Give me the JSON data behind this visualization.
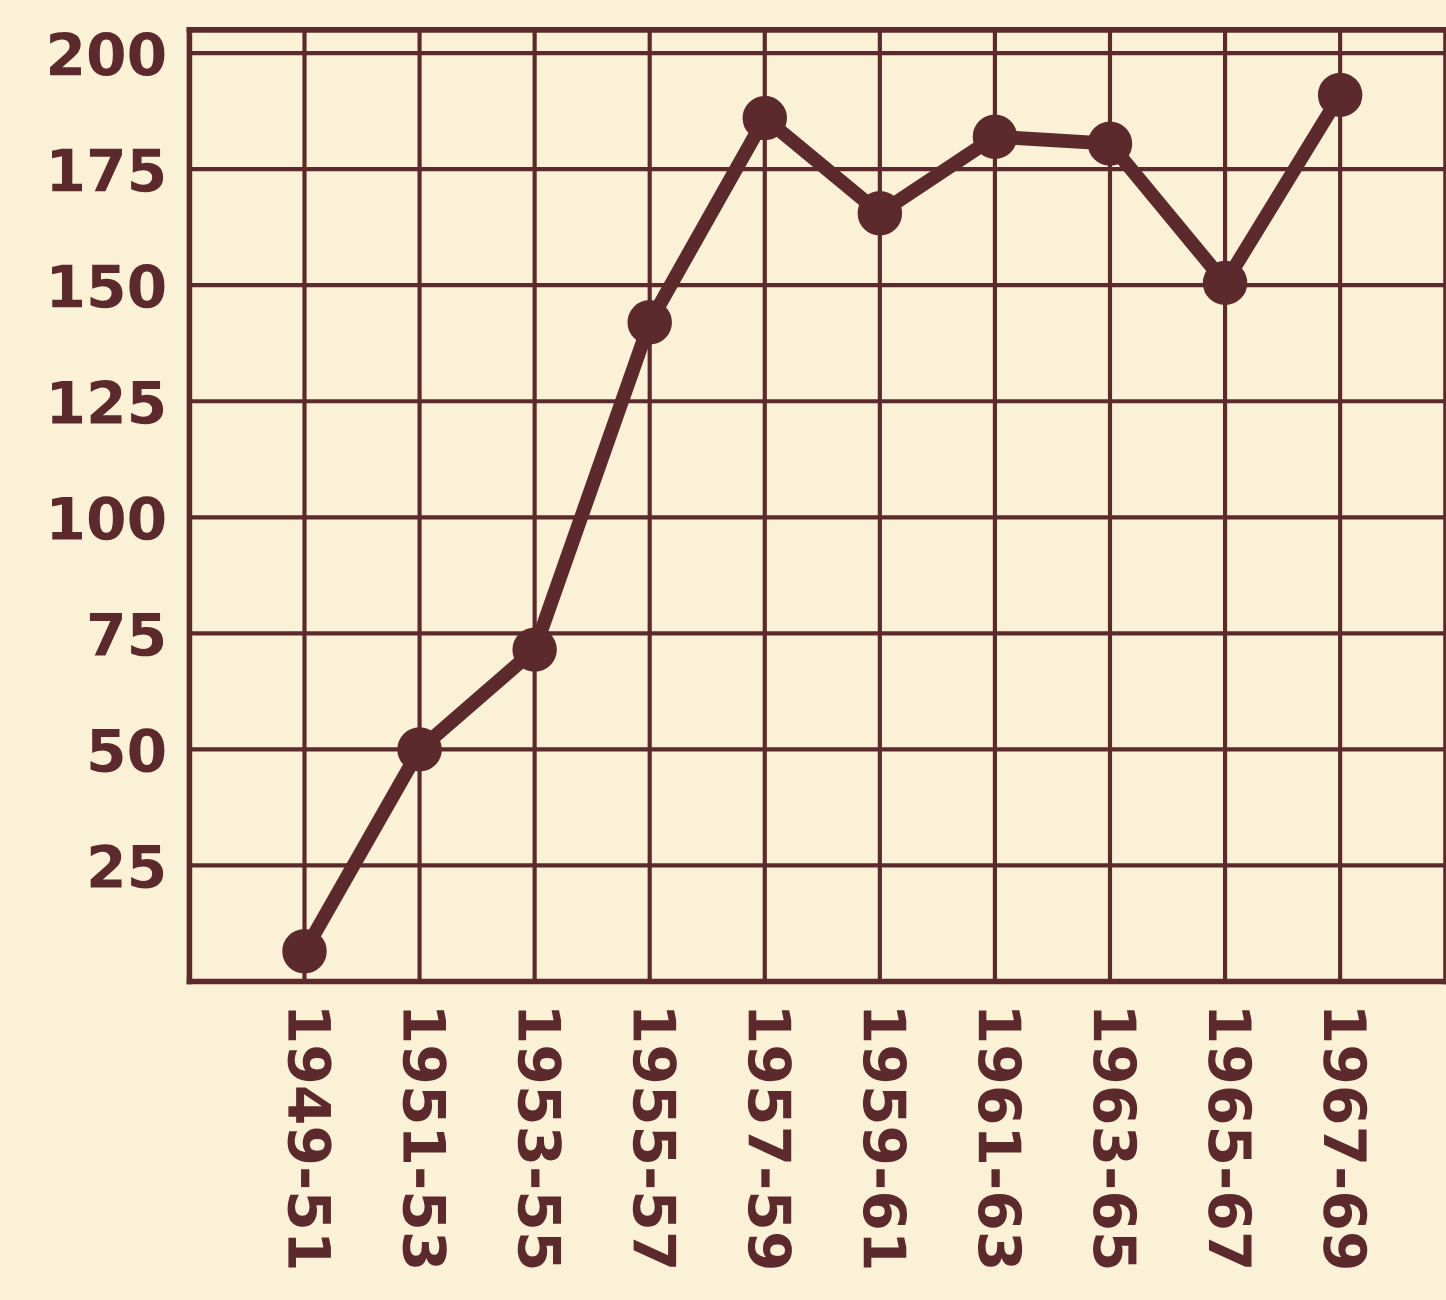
{
  "chart_data": {
    "type": "line",
    "categories": [
      "1949-51",
      "1951-53",
      "1953-55",
      "1955-57",
      "1957-59",
      "1959-61",
      "1961-63",
      "1963-65",
      "1965-67",
      "1967-69"
    ],
    "series": [
      {
        "color": "#5c2a2c",
        "values": [
          6.5,
          50,
          71.5,
          142,
          186,
          165.5,
          182,
          180.5,
          150.5,
          191
        ]
      }
    ],
    "ylim": [
      0,
      205
    ],
    "yticks": [
      25,
      50,
      75,
      100,
      125,
      150,
      175,
      200
    ],
    "grid": true,
    "marker": "circle",
    "line_style": "solid"
  }
}
